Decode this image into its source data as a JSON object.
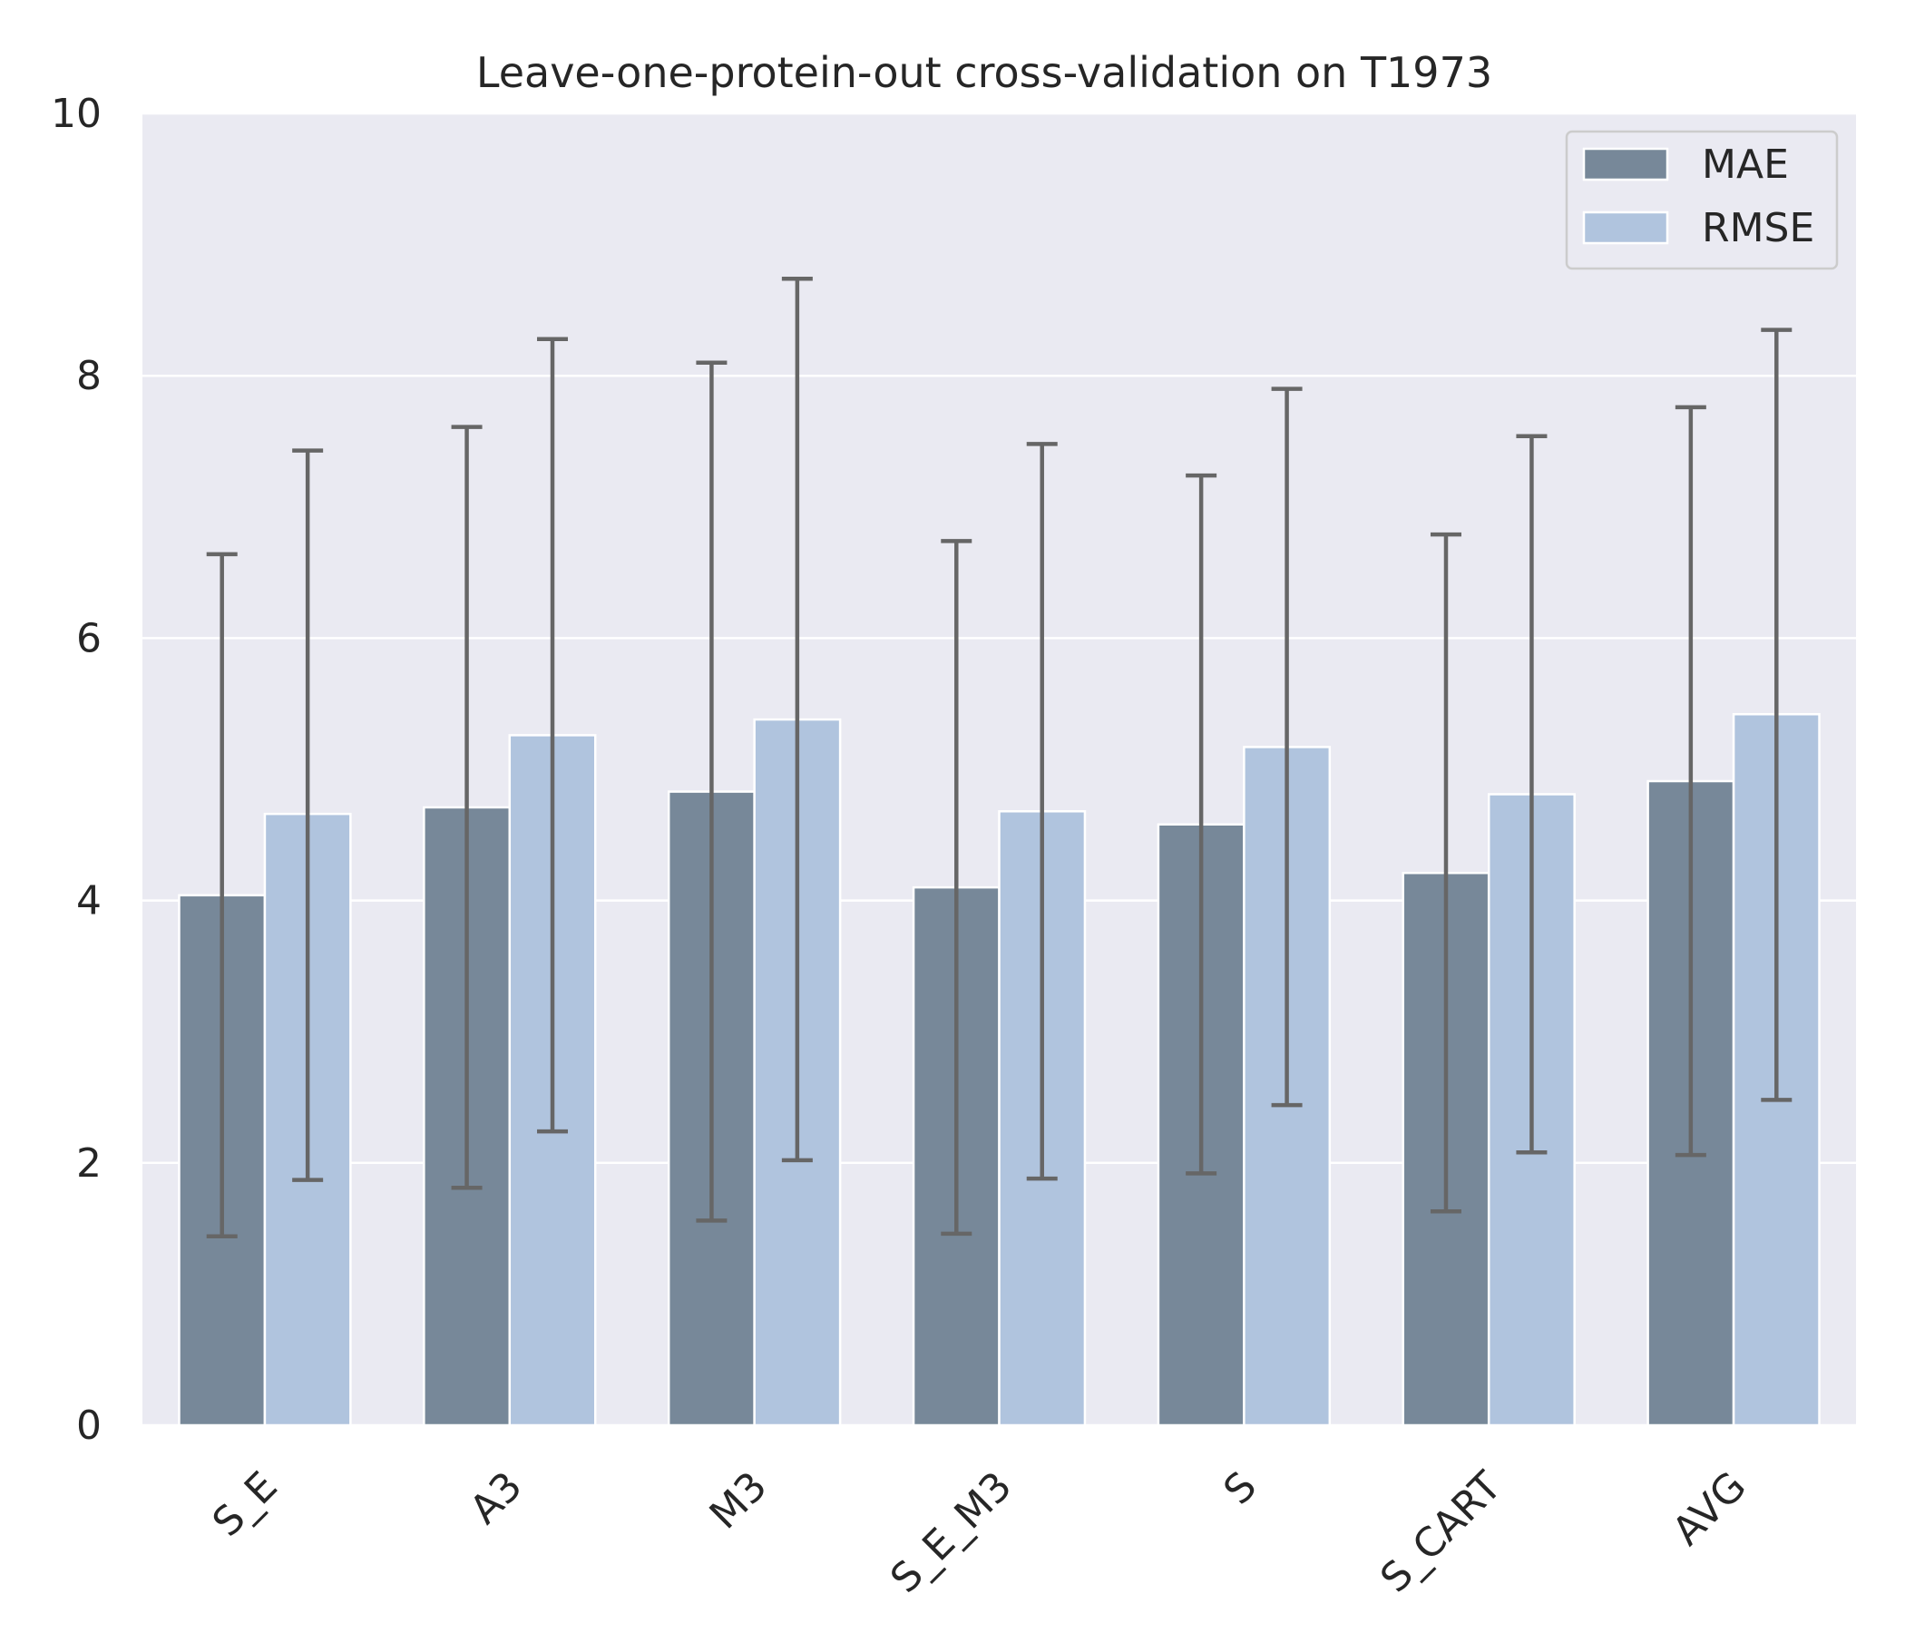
{
  "chart_data": {
    "type": "bar",
    "title": "Leave-one-protein-out cross-validation on T1973",
    "xlabel": "",
    "ylabel": "",
    "ylim": [
      0,
      10
    ],
    "yticks": [
      0,
      2,
      4,
      6,
      8,
      10
    ],
    "grid": true,
    "legend_position": "top-right",
    "categories": [
      "S_E",
      "A3",
      "M3",
      "S_E_M3",
      "S",
      "S_CART",
      "AVG"
    ],
    "series": [
      {
        "name": "MAE",
        "color": "#778899",
        "values": [
          4.04,
          4.71,
          4.83,
          4.1,
          4.58,
          4.21,
          4.91
        ],
        "error_low": [
          1.44,
          1.81,
          1.56,
          1.46,
          1.92,
          1.63,
          2.06
        ],
        "error_high": [
          6.64,
          7.61,
          8.1,
          6.74,
          7.24,
          6.79,
          7.76
        ]
      },
      {
        "name": "RMSE",
        "color": "#b0c4de",
        "values": [
          4.66,
          5.26,
          5.38,
          4.68,
          5.17,
          4.81,
          5.42
        ],
        "error_low": [
          1.87,
          2.24,
          2.02,
          1.88,
          2.44,
          2.08,
          2.48
        ],
        "error_high": [
          7.43,
          8.28,
          8.74,
          7.48,
          7.9,
          7.54,
          8.35
        ]
      }
    ],
    "colors": {
      "plot_background": "#eaeaf2",
      "grid": "#ffffff",
      "error_bar": "#666666"
    }
  }
}
